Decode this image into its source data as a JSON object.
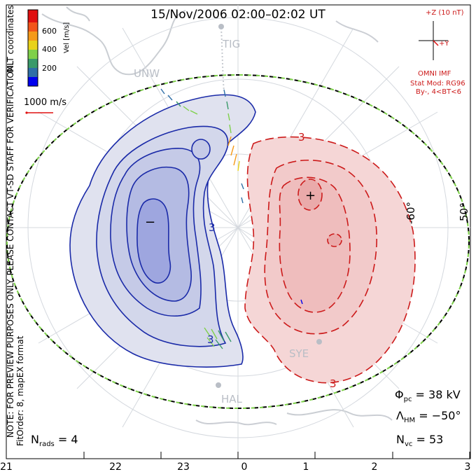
{
  "title": "15/Nov/2006 02:00–02:02 UT",
  "side_note": "NOTE: FOR PREVIEW PURPOSES ONLY. PLEASE CONTACT VT-SD STAFF FOR VERIFICATION.",
  "side_note2": "FitOrder: 8, mapEX format",
  "coords": "MLT coordinates",
  "colorbar": {
    "label": "Vel [m/s]",
    "ticks": [
      "600",
      "400",
      "200"
    ],
    "colors": [
      "#0000ee",
      "#2f6fa7",
      "#3a9a6a",
      "#7fd04a",
      "#e8d21a",
      "#f59a1a",
      "#f2551a",
      "#e01010"
    ]
  },
  "ref_vector": "1000 m/s",
  "imf": {
    "bz_label": "+Z (10 nT)",
    "by_label": "+Y",
    "source": "OMNI IMF",
    "model": "Stat Mod: RG96",
    "model_params": "By-, 4<BT<6"
  },
  "stations": [
    "TIG",
    "UNW",
    "SYE",
    "HAL"
  ],
  "lat_labels": [
    "-60°",
    "50°"
  ],
  "contour_labels": [
    "3",
    "3",
    "3",
    "3"
  ],
  "pole_markers": [
    "−",
    "+"
  ],
  "stats": {
    "phi_label": "Φ",
    "phi_sub": "pc",
    "phi_value": " = 38 kV",
    "lambda_label": "Λ",
    "lambda_sub": "HM",
    "lambda_value": " = −50°",
    "nvc_label": "N",
    "nvc_sub": "vc",
    "nvc_value": " = 53",
    "nrads_label": "N",
    "nrads_sub": "rads",
    "nrads_value": " = 4"
  },
  "mlt_axis": [
    "21",
    "22",
    "23",
    "0",
    "1",
    "2",
    "3"
  ],
  "colors": {
    "negative_cell": "#1a2aa8",
    "positive_cell": "#cc1a1a",
    "frame": "#000000",
    "grid": "#cfd4dc"
  }
}
